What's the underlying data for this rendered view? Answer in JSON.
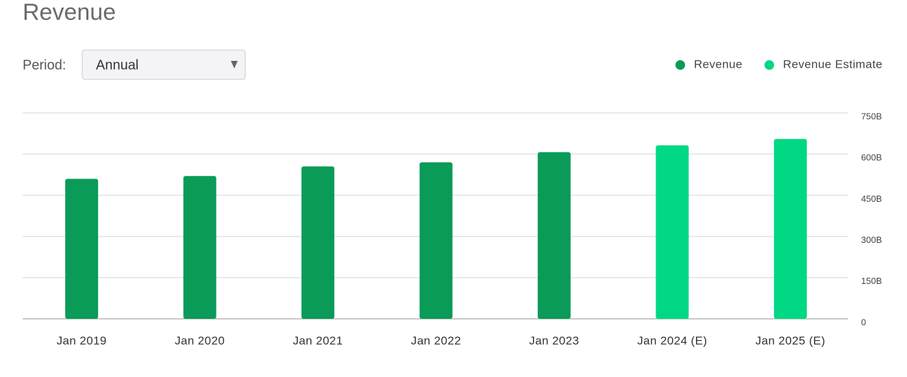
{
  "chart_data": {
    "type": "bar",
    "title": "Revenue",
    "categories": [
      "Jan 2019",
      "Jan 2020",
      "Jan 2021",
      "Jan 2022",
      "Jan 2023",
      "Jan 2024 (E)",
      "Jan 2025 (E)"
    ],
    "series": [
      {
        "name": "Revenue",
        "color": "#0a9b58",
        "values": [
          510,
          520,
          555,
          570,
          607,
          null,
          null
        ]
      },
      {
        "name": "Revenue Estimate",
        "color": "#00d884",
        "values": [
          null,
          null,
          null,
          null,
          null,
          632,
          655
        ]
      }
    ],
    "ylim": [
      0,
      750
    ],
    "yticks": [
      0,
      {
        "value": 150,
        "label": "150B"
      },
      {
        "value": 300,
        "label": "300B"
      },
      {
        "value": 450,
        "label": "450B"
      },
      {
        "value": 600,
        "label": "600B"
      },
      {
        "value": 750,
        "label": "750B"
      }
    ],
    "grid": true,
    "legend": "top-right"
  },
  "controls": {
    "period_label": "Period:",
    "period_value": "Annual"
  }
}
